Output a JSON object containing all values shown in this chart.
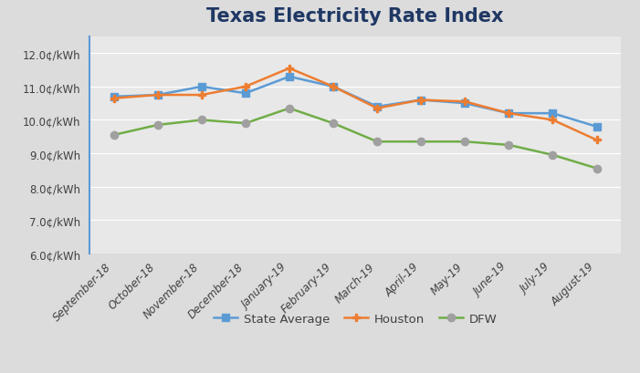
{
  "title": "Texas Electricity Rate Index",
  "categories": [
    "September-18",
    "October-18",
    "November-18",
    "December-18",
    "January-19",
    "February-19",
    "March-19",
    "April-19",
    "May-19",
    "June-19",
    "July-19",
    "August-19"
  ],
  "series": [
    {
      "name": "State Average",
      "values": [
        10.7,
        10.75,
        11.0,
        10.8,
        11.3,
        11.0,
        10.4,
        10.6,
        10.5,
        10.2,
        10.2,
        9.8
      ],
      "color": "#5B9BD5",
      "marker": "s",
      "markercolor": "#5B9BD5",
      "markersize": 6,
      "linewidth": 1.8
    },
    {
      "name": "Houston",
      "values": [
        10.65,
        10.75,
        10.75,
        11.0,
        11.55,
        11.0,
        10.35,
        10.6,
        10.55,
        10.2,
        10.0,
        9.4
      ],
      "color": "#ED7D31",
      "marker": "P",
      "markercolor": "#ED7D31",
      "markersize": 6,
      "linewidth": 1.8
    },
    {
      "name": "DFW",
      "values": [
        9.55,
        9.85,
        10.0,
        9.9,
        10.35,
        9.9,
        9.35,
        9.35,
        9.35,
        9.25,
        8.95,
        8.55
      ],
      "color": "#70AD47",
      "marker": "o",
      "markercolor": "#A0A0A0",
      "markersize": 6,
      "linewidth": 1.8
    }
  ],
  "ylim": [
    6.0,
    12.5
  ],
  "ytick_values": [
    6.0,
    7.0,
    8.0,
    9.0,
    10.0,
    11.0,
    12.0
  ],
  "ytick_labels": [
    "6.0¢/kWh",
    "7.0¢/kWh",
    "8.0¢/kWh",
    "9.0¢/kWh",
    "10.0¢/kWh",
    "11.0¢/kWh",
    "12.0¢/kWh"
  ],
  "background_color": "#DCDCDC",
  "plot_bg_color": "#E8E8E8",
  "title_color": "#1F3864",
  "axis_left_color": "#5B9BD5",
  "grid_color": "#FFFFFF",
  "tick_label_color": "#404040",
  "title_fontsize": 15,
  "tick_fontsize": 8.5,
  "legend_fontsize": 9.5
}
